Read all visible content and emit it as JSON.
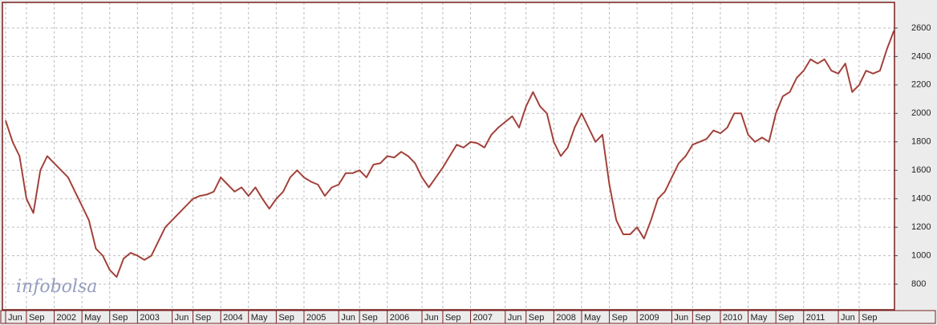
{
  "chart_data": {
    "type": "line",
    "watermark": "infobolsa",
    "categories": [
      "Jun",
      null,
      null,
      "Sep",
      null,
      null,
      null,
      "2002",
      null,
      null,
      null,
      "May",
      null,
      null,
      null,
      "Sep",
      null,
      null,
      null,
      "2003",
      null,
      null,
      null,
      null,
      "Jun",
      null,
      null,
      "Sep",
      null,
      null,
      null,
      "2004",
      null,
      null,
      null,
      "May",
      null,
      null,
      null,
      "Sep",
      null,
      null,
      null,
      "2005",
      null,
      null,
      null,
      null,
      "Jun",
      null,
      null,
      "Sep",
      null,
      null,
      null,
      "2006",
      null,
      null,
      null,
      null,
      "Jun",
      null,
      null,
      "Sep",
      null,
      null,
      null,
      "2007",
      null,
      null,
      null,
      null,
      "Jun",
      null,
      null,
      "Sep",
      null,
      null,
      null,
      "2008",
      null,
      null,
      null,
      "May",
      null,
      null,
      null,
      "Sep",
      null,
      null,
      null,
      "2009",
      null,
      null,
      null,
      null,
      "Jun",
      null,
      null,
      "Sep",
      null,
      null,
      null,
      "2010",
      null,
      null,
      null,
      "May",
      null,
      null,
      null,
      "Sep",
      null,
      null,
      null,
      "2011",
      null,
      null,
      null,
      null,
      "Jun",
      null,
      null,
      "Sep",
      null,
      null,
      null,
      null,
      null
    ],
    "series": [
      {
        "color": "#c8401e",
        "values": [
          1950,
          1800,
          1700,
          1400,
          1300,
          1600,
          1700,
          1650,
          1600,
          1550,
          1450,
          1350,
          1250,
          1050,
          1000,
          900,
          850,
          980,
          1020,
          1000,
          970,
          1000,
          1100,
          1200,
          1250,
          1300,
          1350,
          1400,
          1420,
          1430,
          1450,
          1550,
          1500,
          1450,
          1480,
          1420,
          1480,
          1400,
          1330,
          1400,
          1450,
          1550,
          1600,
          1550,
          1520,
          1500,
          1420,
          1480,
          1500,
          1580,
          1580,
          1600,
          1550,
          1640,
          1650,
          1700,
          1690,
          1730,
          1700,
          1650,
          1550,
          1480,
          1550,
          1620,
          1700,
          1780,
          1760,
          1800,
          1790,
          1760,
          1850,
          1900,
          1940,
          1980,
          1900,
          2050,
          2150,
          2050,
          2000,
          1800,
          1700,
          1760,
          1900,
          2000,
          1900,
          1800,
          1850,
          1500,
          1250,
          1150,
          1150,
          1200,
          1120,
          1250,
          1400,
          1450,
          1550,
          1650,
          1700,
          1780,
          1800,
          1820,
          1880,
          1860,
          1900,
          2000,
          2000,
          1850,
          1800,
          1830,
          1800,
          2000,
          2120,
          2150,
          2250,
          2300,
          2380,
          2350,
          2380,
          2300,
          2280,
          2350,
          2150,
          2200,
          2300,
          2280,
          2300,
          2450,
          2580
        ]
      }
    ],
    "ylim": [
      620,
      2780
    ],
    "yticks": [
      800,
      1000,
      1200,
      1400,
      1600,
      1800,
      2000,
      2200,
      2400,
      2600
    ],
    "grid": true
  }
}
